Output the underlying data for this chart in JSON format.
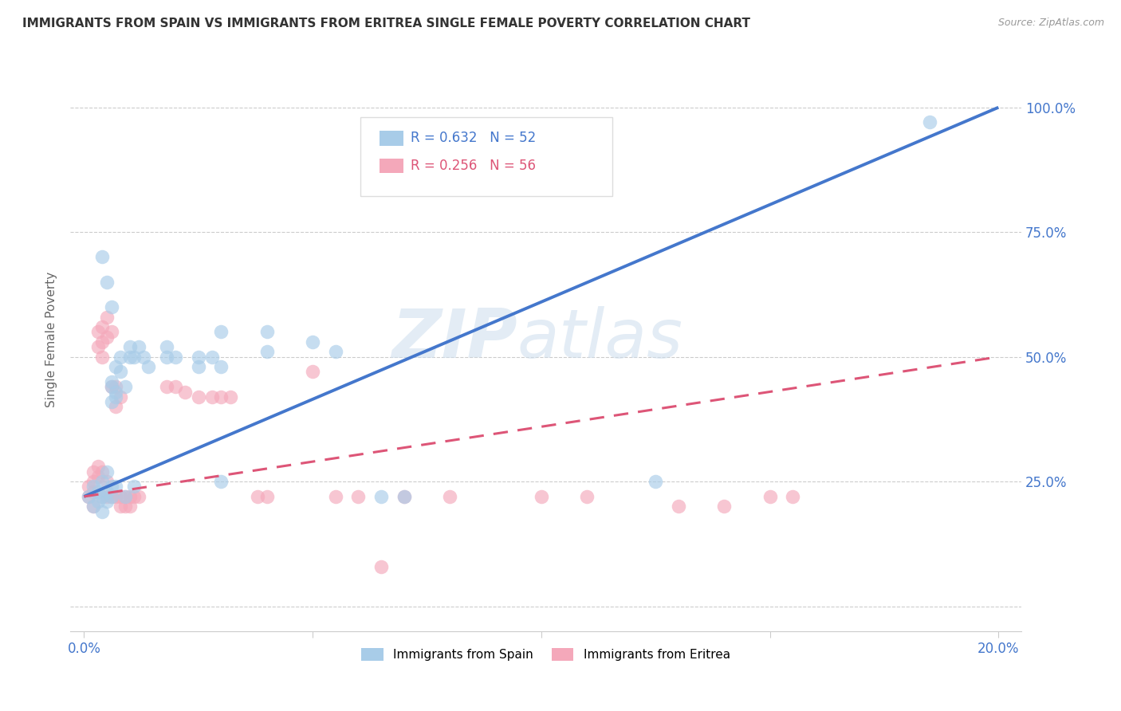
{
  "title": "IMMIGRANTS FROM SPAIN VS IMMIGRANTS FROM ERITREA SINGLE FEMALE POVERTY CORRELATION CHART",
  "source": "Source: ZipAtlas.com",
  "ylabel": "Single Female Poverty",
  "color_spain": "#a8cce8",
  "color_eritrea": "#f4a8ba",
  "trendline_spain": "#4477cc",
  "trendline_eritrea": "#dd5577",
  "watermark_zip": "ZIP",
  "watermark_atlas": "atlas",
  "spain_points": [
    [
      0.001,
      0.22
    ],
    [
      0.002,
      0.24
    ],
    [
      0.002,
      0.2
    ],
    [
      0.003,
      0.23
    ],
    [
      0.003,
      0.21
    ],
    [
      0.004,
      0.22
    ],
    [
      0.004,
      0.19
    ],
    [
      0.004,
      0.25
    ],
    [
      0.005,
      0.23
    ],
    [
      0.005,
      0.21
    ],
    [
      0.005,
      0.27
    ],
    [
      0.006,
      0.44
    ],
    [
      0.006,
      0.41
    ],
    [
      0.006,
      0.45
    ],
    [
      0.006,
      0.24
    ],
    [
      0.006,
      0.22
    ],
    [
      0.007,
      0.48
    ],
    [
      0.007,
      0.43
    ],
    [
      0.007,
      0.42
    ],
    [
      0.007,
      0.24
    ],
    [
      0.008,
      0.5
    ],
    [
      0.008,
      0.47
    ],
    [
      0.009,
      0.44
    ],
    [
      0.009,
      0.22
    ],
    [
      0.01,
      0.52
    ],
    [
      0.01,
      0.5
    ],
    [
      0.011,
      0.5
    ],
    [
      0.011,
      0.24
    ],
    [
      0.012,
      0.52
    ],
    [
      0.013,
      0.5
    ],
    [
      0.014,
      0.48
    ],
    [
      0.018,
      0.52
    ],
    [
      0.018,
      0.5
    ],
    [
      0.02,
      0.5
    ],
    [
      0.025,
      0.48
    ],
    [
      0.025,
      0.5
    ],
    [
      0.028,
      0.5
    ],
    [
      0.03,
      0.48
    ],
    [
      0.03,
      0.25
    ],
    [
      0.04,
      0.55
    ],
    [
      0.04,
      0.51
    ],
    [
      0.05,
      0.53
    ],
    [
      0.055,
      0.51
    ],
    [
      0.004,
      0.7
    ],
    [
      0.005,
      0.65
    ],
    [
      0.006,
      0.6
    ],
    [
      0.03,
      0.55
    ],
    [
      0.065,
      0.22
    ],
    [
      0.07,
      0.22
    ],
    [
      0.125,
      0.25
    ],
    [
      0.185,
      0.97
    ]
  ],
  "eritrea_points": [
    [
      0.001,
      0.22
    ],
    [
      0.001,
      0.24
    ],
    [
      0.002,
      0.23
    ],
    [
      0.002,
      0.25
    ],
    [
      0.002,
      0.27
    ],
    [
      0.002,
      0.2
    ],
    [
      0.003,
      0.26
    ],
    [
      0.003,
      0.28
    ],
    [
      0.003,
      0.55
    ],
    [
      0.003,
      0.52
    ],
    [
      0.004,
      0.56
    ],
    [
      0.004,
      0.53
    ],
    [
      0.004,
      0.5
    ],
    [
      0.004,
      0.27
    ],
    [
      0.004,
      0.22
    ],
    [
      0.005,
      0.58
    ],
    [
      0.005,
      0.54
    ],
    [
      0.005,
      0.25
    ],
    [
      0.005,
      0.22
    ],
    [
      0.006,
      0.55
    ],
    [
      0.006,
      0.44
    ],
    [
      0.006,
      0.22
    ],
    [
      0.007,
      0.44
    ],
    [
      0.007,
      0.4
    ],
    [
      0.007,
      0.22
    ],
    [
      0.008,
      0.42
    ],
    [
      0.008,
      0.22
    ],
    [
      0.008,
      0.2
    ],
    [
      0.009,
      0.22
    ],
    [
      0.009,
      0.2
    ],
    [
      0.01,
      0.22
    ],
    [
      0.01,
      0.2
    ],
    [
      0.011,
      0.22
    ],
    [
      0.012,
      0.22
    ],
    [
      0.018,
      0.44
    ],
    [
      0.02,
      0.44
    ],
    [
      0.022,
      0.43
    ],
    [
      0.025,
      0.42
    ],
    [
      0.028,
      0.42
    ],
    [
      0.03,
      0.42
    ],
    [
      0.032,
      0.42
    ],
    [
      0.038,
      0.22
    ],
    [
      0.04,
      0.22
    ],
    [
      0.05,
      0.47
    ],
    [
      0.055,
      0.22
    ],
    [
      0.06,
      0.22
    ],
    [
      0.065,
      0.08
    ],
    [
      0.07,
      0.22
    ],
    [
      0.08,
      0.22
    ],
    [
      0.1,
      0.22
    ],
    [
      0.11,
      0.22
    ],
    [
      0.13,
      0.2
    ],
    [
      0.14,
      0.2
    ],
    [
      0.15,
      0.22
    ],
    [
      0.155,
      0.22
    ]
  ],
  "spain_line": [
    0.0,
    0.2,
    0.22,
    1.0
  ],
  "eritrea_line": [
    0.0,
    0.2,
    0.22,
    0.5
  ],
  "xlim": [
    -0.003,
    0.205
  ],
  "ylim": [
    -0.05,
    1.12
  ],
  "ytick_positions": [
    0.0,
    0.25,
    0.5,
    0.75,
    1.0
  ],
  "ytick_labels": [
    "",
    "25.0%",
    "50.0%",
    "75.0%",
    "100.0%"
  ],
  "xtick_positions": [
    0.0,
    0.05,
    0.1,
    0.15,
    0.2
  ],
  "xtick_left_label": "0.0%",
  "xtick_right_label": "20.0%"
}
